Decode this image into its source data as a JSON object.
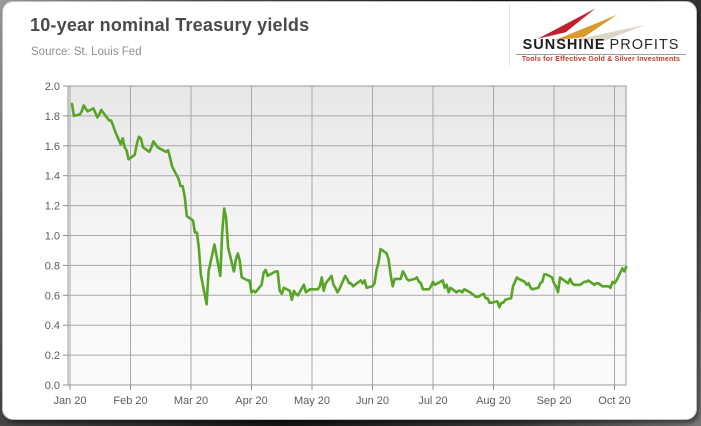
{
  "header": {
    "title": "10-year nominal Treasury yields",
    "source": "Source: St. Louis Fed"
  },
  "logo": {
    "name_bold": "SUNSHINE",
    "name_light": "PROFITS",
    "tagline": "Tools for Effective Gold & Silver Investments",
    "colors": {
      "red": "#bf1f2e",
      "gold": "#d99b2d",
      "beige": "#ddd5c6",
      "tagline_red": "#bf3b2b"
    }
  },
  "chart_data": {
    "type": "line",
    "title": "10-year nominal Treasury yields",
    "source": "Source: St. Louis Fed",
    "xlabel": "",
    "ylabel": "",
    "ylim": [
      0.0,
      2.0
    ],
    "ytick_step": 0.2,
    "yticks": [
      "0.0",
      "0.2",
      "0.4",
      "0.6",
      "0.8",
      "1.0",
      "1.2",
      "1.4",
      "1.6",
      "1.8",
      "2.0"
    ],
    "xticks": [
      "Jan 20",
      "Feb 20",
      "Mar 20",
      "Apr 20",
      "May 20",
      "Jun 20",
      "Jul 20",
      "Aug 20",
      "Sep 20",
      "Oct 20"
    ],
    "grid": true,
    "legend": "none",
    "line_color": "#57a426",
    "grid_color": "#a8a8a8",
    "plot_bg_top": "#e7e7e7",
    "plot_bg_bottom": "#fbfbfb",
    "series": [
      {
        "name": "10-year nominal Treasury yield (%)",
        "points": [
          [
            "2020-01-02",
            1.88
          ],
          [
            "2020-01-03",
            1.8
          ],
          [
            "2020-01-06",
            1.81
          ],
          [
            "2020-01-07",
            1.83
          ],
          [
            "2020-01-08",
            1.87
          ],
          [
            "2020-01-09",
            1.85
          ],
          [
            "2020-01-10",
            1.83
          ],
          [
            "2020-01-13",
            1.85
          ],
          [
            "2020-01-14",
            1.82
          ],
          [
            "2020-01-15",
            1.79
          ],
          [
            "2020-01-16",
            1.81
          ],
          [
            "2020-01-17",
            1.84
          ],
          [
            "2020-01-21",
            1.77
          ],
          [
            "2020-01-22",
            1.77
          ],
          [
            "2020-01-23",
            1.74
          ],
          [
            "2020-01-24",
            1.7
          ],
          [
            "2020-01-27",
            1.61
          ],
          [
            "2020-01-28",
            1.65
          ],
          [
            "2020-01-29",
            1.59
          ],
          [
            "2020-01-30",
            1.57
          ],
          [
            "2020-01-31",
            1.51
          ],
          [
            "2020-02-03",
            1.54
          ],
          [
            "2020-02-04",
            1.61
          ],
          [
            "2020-02-05",
            1.66
          ],
          [
            "2020-02-06",
            1.65
          ],
          [
            "2020-02-07",
            1.59
          ],
          [
            "2020-02-10",
            1.56
          ],
          [
            "2020-02-11",
            1.59
          ],
          [
            "2020-02-12",
            1.63
          ],
          [
            "2020-02-13",
            1.61
          ],
          [
            "2020-02-14",
            1.59
          ],
          [
            "2020-02-18",
            1.56
          ],
          [
            "2020-02-19",
            1.57
          ],
          [
            "2020-02-20",
            1.52
          ],
          [
            "2020-02-21",
            1.46
          ],
          [
            "2020-02-24",
            1.38
          ],
          [
            "2020-02-25",
            1.33
          ],
          [
            "2020-02-26",
            1.33
          ],
          [
            "2020-02-27",
            1.26
          ],
          [
            "2020-02-28",
            1.13
          ],
          [
            "2020-03-02",
            1.1
          ],
          [
            "2020-03-03",
            1.02
          ],
          [
            "2020-03-04",
            1.02
          ],
          [
            "2020-03-05",
            0.92
          ],
          [
            "2020-03-06",
            0.74
          ],
          [
            "2020-03-09",
            0.54
          ],
          [
            "2020-03-10",
            0.76
          ],
          [
            "2020-03-11",
            0.82
          ],
          [
            "2020-03-12",
            0.88
          ],
          [
            "2020-03-13",
            0.94
          ],
          [
            "2020-03-16",
            0.73
          ],
          [
            "2020-03-17",
            1.02
          ],
          [
            "2020-03-18",
            1.18
          ],
          [
            "2020-03-19",
            1.12
          ],
          [
            "2020-03-20",
            0.92
          ],
          [
            "2020-03-23",
            0.76
          ],
          [
            "2020-03-24",
            0.84
          ],
          [
            "2020-03-25",
            0.88
          ],
          [
            "2020-03-26",
            0.83
          ],
          [
            "2020-03-27",
            0.72
          ],
          [
            "2020-03-30",
            0.7
          ],
          [
            "2020-03-31",
            0.7
          ],
          [
            "2020-04-01",
            0.62
          ],
          [
            "2020-04-02",
            0.63
          ],
          [
            "2020-04-03",
            0.62
          ],
          [
            "2020-04-06",
            0.67
          ],
          [
            "2020-04-07",
            0.75
          ],
          [
            "2020-04-08",
            0.77
          ],
          [
            "2020-04-09",
            0.73
          ],
          [
            "2020-04-13",
            0.76
          ],
          [
            "2020-04-14",
            0.76
          ],
          [
            "2020-04-15",
            0.63
          ],
          [
            "2020-04-16",
            0.61
          ],
          [
            "2020-04-17",
            0.65
          ],
          [
            "2020-04-20",
            0.63
          ],
          [
            "2020-04-21",
            0.57
          ],
          [
            "2020-04-22",
            0.63
          ],
          [
            "2020-04-23",
            0.61
          ],
          [
            "2020-04-24",
            0.6
          ],
          [
            "2020-04-27",
            0.67
          ],
          [
            "2020-04-28",
            0.62
          ],
          [
            "2020-04-29",
            0.63
          ],
          [
            "2020-04-30",
            0.64
          ],
          [
            "2020-05-01",
            0.64
          ],
          [
            "2020-05-04",
            0.64
          ],
          [
            "2020-05-05",
            0.66
          ],
          [
            "2020-05-06",
            0.72
          ],
          [
            "2020-05-07",
            0.63
          ],
          [
            "2020-05-08",
            0.68
          ],
          [
            "2020-05-11",
            0.73
          ],
          [
            "2020-05-12",
            0.67
          ],
          [
            "2020-05-13",
            0.65
          ],
          [
            "2020-05-14",
            0.62
          ],
          [
            "2020-05-15",
            0.64
          ],
          [
            "2020-05-18",
            0.73
          ],
          [
            "2020-05-19",
            0.71
          ],
          [
            "2020-05-20",
            0.68
          ],
          [
            "2020-05-21",
            0.68
          ],
          [
            "2020-05-22",
            0.66
          ],
          [
            "2020-05-26",
            0.7
          ],
          [
            "2020-05-27",
            0.68
          ],
          [
            "2020-05-28",
            0.7
          ],
          [
            "2020-05-29",
            0.65
          ],
          [
            "2020-06-01",
            0.66
          ],
          [
            "2020-06-02",
            0.68
          ],
          [
            "2020-06-03",
            0.77
          ],
          [
            "2020-06-04",
            0.82
          ],
          [
            "2020-06-05",
            0.91
          ],
          [
            "2020-06-08",
            0.88
          ],
          [
            "2020-06-09",
            0.84
          ],
          [
            "2020-06-10",
            0.74
          ],
          [
            "2020-06-11",
            0.66
          ],
          [
            "2020-06-12",
            0.71
          ],
          [
            "2020-06-15",
            0.71
          ],
          [
            "2020-06-16",
            0.76
          ],
          [
            "2020-06-17",
            0.74
          ],
          [
            "2020-06-18",
            0.71
          ],
          [
            "2020-06-19",
            0.7
          ],
          [
            "2020-06-22",
            0.71
          ],
          [
            "2020-06-23",
            0.72
          ],
          [
            "2020-06-24",
            0.69
          ],
          [
            "2020-06-25",
            0.68
          ],
          [
            "2020-06-26",
            0.64
          ],
          [
            "2020-06-29",
            0.64
          ],
          [
            "2020-06-30",
            0.66
          ],
          [
            "2020-07-01",
            0.69
          ],
          [
            "2020-07-02",
            0.67
          ],
          [
            "2020-07-06",
            0.7
          ],
          [
            "2020-07-07",
            0.65
          ],
          [
            "2020-07-08",
            0.67
          ],
          [
            "2020-07-09",
            0.62
          ],
          [
            "2020-07-10",
            0.65
          ],
          [
            "2020-07-13",
            0.62
          ],
          [
            "2020-07-14",
            0.63
          ],
          [
            "2020-07-15",
            0.63
          ],
          [
            "2020-07-16",
            0.62
          ],
          [
            "2020-07-17",
            0.64
          ],
          [
            "2020-07-20",
            0.62
          ],
          [
            "2020-07-21",
            0.61
          ],
          [
            "2020-07-22",
            0.6
          ],
          [
            "2020-07-23",
            0.59
          ],
          [
            "2020-07-24",
            0.59
          ],
          [
            "2020-07-27",
            0.61
          ],
          [
            "2020-07-28",
            0.58
          ],
          [
            "2020-07-29",
            0.58
          ],
          [
            "2020-07-30",
            0.55
          ],
          [
            "2020-07-31",
            0.55
          ],
          [
            "2020-08-03",
            0.56
          ],
          [
            "2020-08-04",
            0.52
          ],
          [
            "2020-08-05",
            0.55
          ],
          [
            "2020-08-06",
            0.55
          ],
          [
            "2020-08-07",
            0.57
          ],
          [
            "2020-08-10",
            0.58
          ],
          [
            "2020-08-11",
            0.66
          ],
          [
            "2020-08-12",
            0.69
          ],
          [
            "2020-08-13",
            0.72
          ],
          [
            "2020-08-14",
            0.71
          ],
          [
            "2020-08-17",
            0.69
          ],
          [
            "2020-08-18",
            0.67
          ],
          [
            "2020-08-19",
            0.68
          ],
          [
            "2020-08-20",
            0.65
          ],
          [
            "2020-08-21",
            0.64
          ],
          [
            "2020-08-24",
            0.65
          ],
          [
            "2020-08-25",
            0.68
          ],
          [
            "2020-08-26",
            0.69
          ],
          [
            "2020-08-27",
            0.74
          ],
          [
            "2020-08-28",
            0.74
          ],
          [
            "2020-08-31",
            0.72
          ],
          [
            "2020-09-01",
            0.68
          ],
          [
            "2020-09-02",
            0.66
          ],
          [
            "2020-09-03",
            0.62
          ],
          [
            "2020-09-04",
            0.72
          ],
          [
            "2020-09-08",
            0.68
          ],
          [
            "2020-09-09",
            0.71
          ],
          [
            "2020-09-10",
            0.68
          ],
          [
            "2020-09-11",
            0.67
          ],
          [
            "2020-09-14",
            0.67
          ],
          [
            "2020-09-15",
            0.68
          ],
          [
            "2020-09-16",
            0.69
          ],
          [
            "2020-09-17",
            0.69
          ],
          [
            "2020-09-18",
            0.7
          ],
          [
            "2020-09-21",
            0.67
          ],
          [
            "2020-09-22",
            0.68
          ],
          [
            "2020-09-23",
            0.68
          ],
          [
            "2020-09-24",
            0.67
          ],
          [
            "2020-09-25",
            0.66
          ],
          [
            "2020-09-28",
            0.66
          ],
          [
            "2020-09-29",
            0.65
          ],
          [
            "2020-09-30",
            0.69
          ],
          [
            "2020-10-01",
            0.68
          ],
          [
            "2020-10-02",
            0.7
          ],
          [
            "2020-10-05",
            0.78
          ],
          [
            "2020-10-06",
            0.76
          ],
          [
            "2020-10-07",
            0.79
          ]
        ]
      }
    ]
  }
}
